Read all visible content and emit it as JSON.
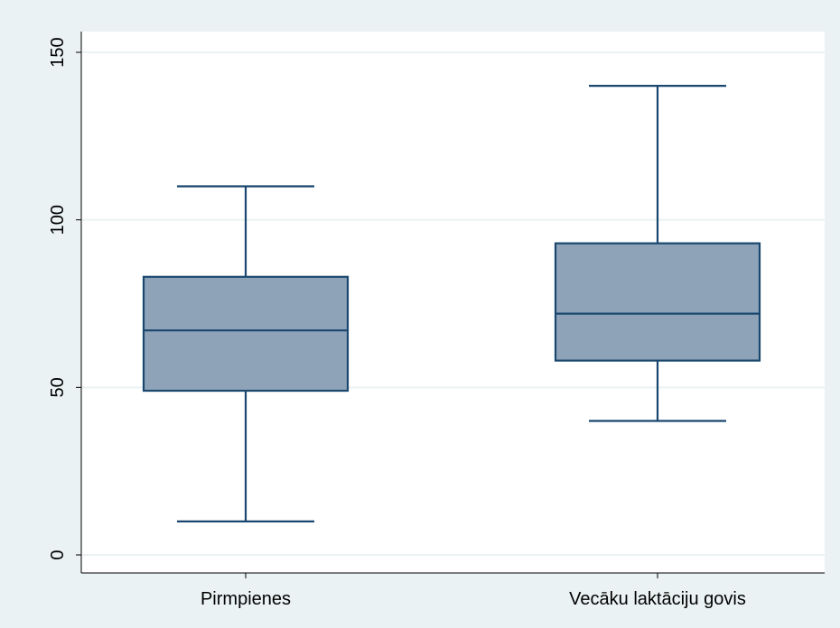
{
  "chart_data": {
    "type": "box",
    "title": "",
    "xlabel": "",
    "ylabel": "",
    "ylim": [
      0,
      150
    ],
    "yticks": [
      0,
      50,
      100,
      150
    ],
    "ytick_labels": [
      "0",
      "50",
      "100",
      "150"
    ],
    "grid": true,
    "legend": "none",
    "categories": [
      "Pirmpienes",
      "Vecāku laktāciju govis"
    ],
    "boxes": [
      {
        "category": "Pirmpienes",
        "whisker_low": 10,
        "q1": 49,
        "median": 67,
        "q3": 83,
        "whisker_high": 110
      },
      {
        "category": "Vecāku laktāciju govis",
        "whisker_low": 40,
        "q1": 58,
        "median": 72,
        "q3": 93,
        "whisker_high": 140
      }
    ],
    "colors": {
      "background": "#eaf2f3",
      "plot_background": "#ffffff",
      "grid": "#eaf2f3",
      "box_fill": "#8ea3b8",
      "box_stroke": "#1a476f",
      "axis": "#000000"
    }
  }
}
